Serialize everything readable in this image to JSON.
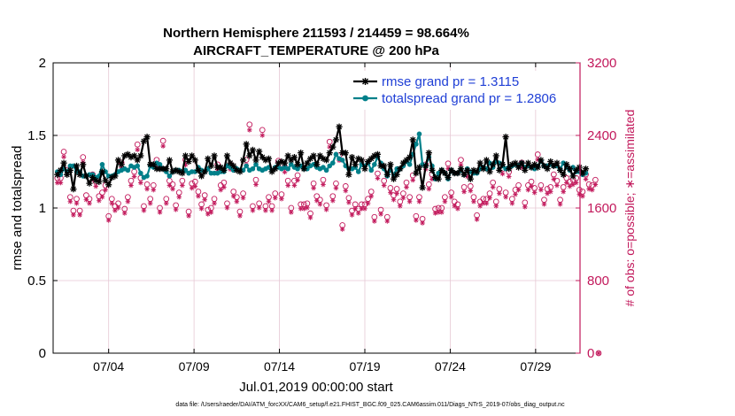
{
  "chart_data": {
    "type": "line",
    "title_line1": "Northern Hemisphere 211593 / 214459 = 98.664%",
    "title_line2": "AIRCRAFT_TEMPERATURE @ 200 hPa",
    "ylabel_left": "rmse and totalspread",
    "ylabel_right": "# of obs: o=possible; ∗=assimilated",
    "xlabel": "Jul.01,2019 00:00:00 start",
    "footnote": "data file: /Users/raeder/DAI/ATM_forcXX/CAM6_setup/f.e21.FHIST_BGC.f09_025.CAM6assim.011/Diags_NTrS_2019-07/obs_diag_output.nc",
    "ylim_left": [
      0,
      2
    ],
    "yticks_left": [
      "0",
      "0.5",
      "1",
      "1.5",
      "2"
    ],
    "ylim_right": [
      0,
      3200
    ],
    "yticks_right": [
      "0",
      "800",
      "1600",
      "2400",
      "3200"
    ],
    "xlim": [
      0.75,
      31.6
    ],
    "xticks": [
      {
        "pos": 4,
        "label": "07/04"
      },
      {
        "pos": 9,
        "label": "07/09"
      },
      {
        "pos": 14,
        "label": "07/14"
      },
      {
        "pos": 19,
        "label": "07/19"
      },
      {
        "pos": 24,
        "label": "07/24"
      },
      {
        "pos": 29,
        "label": "07/29"
      }
    ],
    "series": [
      {
        "name": "rmse",
        "legend": "rmse grand pr = 1.3115",
        "color": "#000000",
        "marker": "asterisk",
        "values": [
          1.23,
          1.26,
          1.31,
          1.23,
          1.26,
          1.13,
          1.29,
          1.23,
          1.3,
          1.22,
          1.17,
          1.21,
          1.19,
          1.18,
          1.25,
          1.19,
          1.16,
          1.21,
          1.22,
          1.33,
          1.3,
          1.36,
          1.37,
          1.35,
          1.36,
          1.33,
          1.36,
          1.46,
          1.49,
          1.3,
          1.3,
          1.27,
          1.27,
          1.27,
          1.27,
          1.33,
          1.25,
          1.26,
          1.25,
          1.24,
          1.36,
          1.32,
          1.36,
          1.33,
          1.26,
          1.22,
          1.25,
          1.34,
          1.29,
          1.36,
          1.28,
          1.28,
          1.26,
          1.36,
          1.31,
          1.29,
          1.26,
          1.25,
          1.33,
          1.44,
          1.36,
          1.4,
          1.33,
          1.39,
          1.35,
          1.33,
          1.34,
          1.25,
          1.27,
          1.31,
          1.32,
          1.31,
          1.36,
          1.33,
          1.35,
          1.3,
          1.38,
          1.27,
          1.31,
          1.34,
          1.36,
          1.3,
          1.36,
          1.34,
          1.33,
          1.38,
          1.42,
          1.47,
          1.56,
          1.38,
          1.38,
          1.23,
          1.35,
          1.3,
          1.34,
          1.33,
          1.27,
          1.32,
          1.34,
          1.36,
          1.37,
          1.29,
          1.29,
          1.23,
          1.3,
          1.2,
          1.23,
          1.27,
          1.31,
          1.33,
          1.35,
          1.47,
          1.24,
          1.28,
          1.14,
          1.29,
          1.38,
          1.26,
          1.21,
          1.2,
          1.26,
          1.24,
          1.21,
          1.26,
          1.24,
          1.24,
          1.27,
          1.23,
          1.26,
          1.2,
          1.26,
          1.25,
          1.31,
          1.27,
          1.33,
          1.25,
          1.3,
          1.36,
          1.26,
          1.3,
          1.49,
          1.27,
          1.3,
          1.31,
          1.28,
          1.31,
          1.26,
          1.31,
          1.28,
          1.3,
          1.28,
          1.33,
          1.29,
          1.27,
          1.32,
          1.29,
          1.31,
          1.26,
          1.23,
          1.3,
          1.27,
          1.22,
          1.26,
          1.28,
          1.24,
          1.27
        ]
      },
      {
        "name": "totalspread",
        "legend": "totalspread grand pr = 1.2806",
        "color": "#00808a",
        "marker": "dot",
        "values": [
          1.25,
          1.23,
          1.27,
          1.25,
          1.29,
          1.29,
          1.25,
          1.25,
          1.22,
          1.22,
          1.23,
          1.23,
          1.21,
          1.22,
          1.3,
          1.25,
          1.22,
          1.22,
          1.23,
          1.25,
          1.26,
          1.27,
          1.26,
          1.29,
          1.28,
          1.29,
          1.24,
          1.21,
          1.22,
          1.29,
          1.28,
          1.31,
          1.3,
          1.27,
          1.25,
          1.22,
          1.25,
          1.26,
          1.26,
          1.25,
          1.26,
          1.24,
          1.25,
          1.25,
          1.28,
          1.26,
          1.25,
          1.27,
          1.24,
          1.24,
          1.24,
          1.25,
          1.25,
          1.29,
          1.28,
          1.26,
          1.27,
          1.26,
          1.26,
          1.29,
          1.26,
          1.27,
          1.3,
          1.27,
          1.26,
          1.27,
          1.28,
          1.26,
          1.28,
          1.28,
          1.27,
          1.28,
          1.27,
          1.3,
          1.28,
          1.27,
          1.29,
          1.27,
          1.27,
          1.29,
          1.3,
          1.28,
          1.27,
          1.28,
          1.26,
          1.29,
          1.31,
          1.37,
          1.34,
          1.33,
          1.29,
          1.27,
          1.27,
          1.28,
          1.25,
          1.3,
          1.29,
          1.31,
          1.26,
          1.3,
          1.35,
          1.31,
          1.27,
          1.22,
          1.26,
          1.23,
          1.27,
          1.27,
          1.29,
          1.32,
          1.3,
          1.37,
          1.44,
          1.51,
          1.3,
          1.29,
          1.35,
          1.29,
          1.2,
          1.24,
          1.26,
          1.24,
          1.2,
          1.26,
          1.24,
          1.24,
          1.26,
          1.23,
          1.27,
          1.25,
          1.24,
          1.24,
          1.27,
          1.28,
          1.27,
          1.31,
          1.28,
          1.32,
          1.31,
          1.29,
          1.27,
          1.28,
          1.29,
          1.3,
          1.29,
          1.31,
          1.28,
          1.29,
          1.28,
          1.27,
          1.29,
          1.32,
          1.29,
          1.29,
          1.3,
          1.29,
          1.29,
          1.27,
          1.31,
          1.28,
          1.26,
          1.28,
          1.25,
          1.25,
          1.23,
          1.24
        ]
      }
    ],
    "obs_points": {
      "possible_marker": "circle",
      "assimilated_marker": "asterisk",
      "color": "#c2185b",
      "values": [
        1930,
        1930,
        2220,
        2020,
        1720,
        1570,
        1700,
        1570,
        2160,
        1740,
        1700,
        1970,
        1890,
        1730,
        1770,
        1850,
        1510,
        1700,
        1620,
        1650,
        2100,
        1590,
        1720,
        1900,
        2000,
        2300,
        1930,
        1620,
        1860,
        1700,
        1850,
        2130,
        1600,
        2340,
        1700,
        1900,
        1860,
        1630,
        1770,
        1900,
        2130,
        1560,
        1870,
        1890,
        1780,
        1640,
        1740,
        1580,
        1600,
        1700,
        2080,
        1850,
        1880,
        1650,
        2080,
        1780,
        1720,
        1560,
        1760,
        2130,
        2520,
        1620,
        1910,
        1650,
        2460,
        1620,
        1720,
        1620,
        1760,
        2120,
        1750,
        2050,
        1900,
        1600,
        1900,
        1960,
        1640,
        1640,
        1650,
        1540,
        1870,
        1730,
        1690,
        1910,
        1630,
        2330,
        1730,
        1870,
        2180,
        1410,
        1840,
        1710,
        1570,
        1640,
        1590,
        1640,
        1640,
        1700,
        1780,
        1500,
        1980,
        1580,
        1900,
        1500,
        1820,
        1740,
        1810,
        1670,
        1760,
        1880,
        1720,
        1960,
        1510,
        1720,
        1480,
        2080,
        1860,
        1970,
        1590,
        1600,
        1600,
        1720,
        2090,
        1770,
        1670,
        1640,
        2130,
        1830,
        2000,
        1840,
        1720,
        1520,
        1670,
        1700,
        1700,
        1760,
        1880,
        1670,
        1810,
        2030,
        1770,
        2000,
        1700,
        1800,
        1850,
        2100,
        1660,
        1850,
        1890,
        1820,
        2190,
        1850,
        1690,
        1810,
        1830,
        1970,
        1900,
        1690,
        1830,
        1930,
        1890,
        1910,
        1930,
        1800,
        1780,
        1970,
        1860,
        1850,
        1910,
        0
      ]
    },
    "legend_position": "top-right",
    "grid": true,
    "colors": {
      "rmse": "#000000",
      "totalspread": "#00808a",
      "obs": "#c2185b",
      "legend_text": "#1f3fd6",
      "grid": "#e6c8d4"
    }
  }
}
